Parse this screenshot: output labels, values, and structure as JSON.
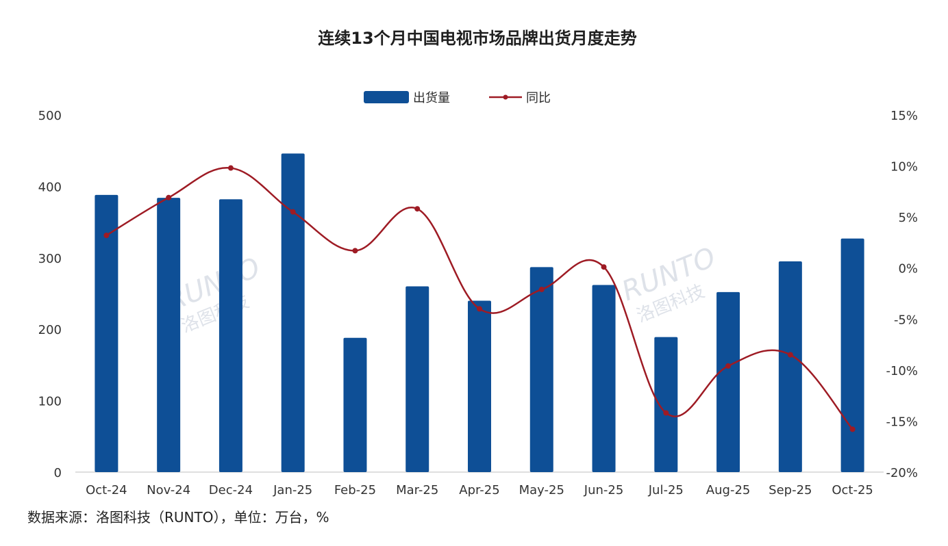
{
  "source_note": "数据来源：洛图科技（RUNTO），单位：万台，%",
  "watermark": {
    "logo": "RUNTO",
    "sub": "洛图科技"
  },
  "colors": {
    "bar": "#0e4f96",
    "line": "#9e1b24",
    "axis": "#bfbfbf"
  },
  "chart_data": {
    "type": "bar",
    "title": "连续13个月中国电视市场品牌出货月度走势",
    "categories": [
      "Oct-24",
      "Nov-24",
      "Dec-24",
      "Jan-25",
      "Feb-25",
      "Mar-25",
      "Apr-25",
      "May-25",
      "Jun-25",
      "Jul-25",
      "Aug-25",
      "Sep-25",
      "Oct-25"
    ],
    "series": [
      {
        "name": "出货量",
        "type": "bar",
        "axis": "left",
        "values": [
          388,
          384,
          382,
          446,
          188,
          260,
          240,
          287,
          262,
          189,
          252,
          295,
          327
        ]
      },
      {
        "name": "同比",
        "type": "line",
        "axis": "right",
        "values": [
          3.2,
          6.9,
          9.8,
          5.5,
          1.7,
          5.8,
          -4.0,
          -2.1,
          0.1,
          -14.2,
          -9.6,
          -8.5,
          -15.8
        ]
      }
    ],
    "y_left": {
      "range": [
        0,
        500
      ],
      "ticks": [
        "0",
        "100",
        "200",
        "300",
        "400",
        "500"
      ]
    },
    "y_right": {
      "range": [
        -20,
        15
      ],
      "ticks": [
        "-20%",
        "-15%",
        "-10%",
        "-5%",
        "0%",
        "5%",
        "10%",
        "15%"
      ]
    },
    "legend_position": "top-center",
    "grid": false
  }
}
